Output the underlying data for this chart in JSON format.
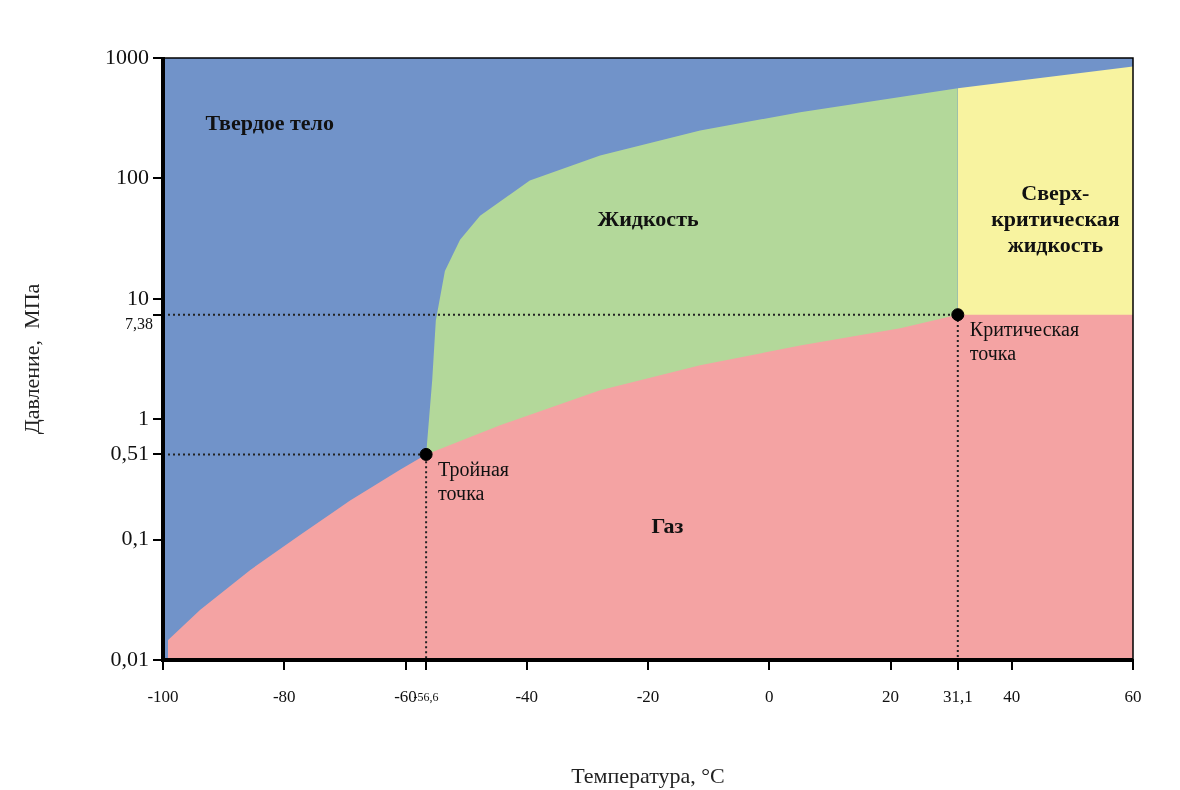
{
  "chart_data": {
    "type": "area",
    "xlabel": "Температура, °C",
    "ylabel": "Давление,  МПа",
    "log": "y",
    "grid": false,
    "legend": false,
    "xlim": [
      -100,
      60
    ],
    "xticks": [
      -100,
      -80,
      -60,
      {
        "value": -56.6,
        "label": "-56,6"
      },
      -40,
      -20,
      0,
      20,
      {
        "value": 31.1,
        "label": "31,1"
      },
      40,
      60
    ],
    "ylim": [
      0.01,
      1000
    ],
    "yticks": [
      {
        "value": 0.01,
        "label": "0,01"
      },
      {
        "value": 0.1,
        "label": "0,1"
      },
      {
        "value": 0.51,
        "label": "0,51"
      },
      1,
      {
        "value": 7.38,
        "label": "7,38"
      },
      10,
      100,
      1000
    ],
    "series": [
      {
        "color": "#7193c9",
        "x": [
          -100,
          60
        ],
        "values": [
          1000,
          1000
        ]
      },
      {
        "color": "#b3d89a",
        "x": [
          -56.6,
          -55.6,
          -55,
          -53.5,
          -51,
          -47.7,
          -39.5,
          -27.9,
          -11.4,
          5.1,
          31.1
        ],
        "values": [
          0.51,
          2.1,
          6.6,
          17,
          31,
          49,
          96,
          155,
          250,
          355,
          560
        ]
      },
      {
        "color": "#f8f3a0",
        "x": [
          31.1,
          60
        ],
        "values": [
          560,
          850
        ]
      },
      {
        "color": "#f4a3a3",
        "x": [
          -99.2,
          -93.9,
          -85.6,
          -77.4,
          -69.2,
          -60.9,
          -56.6,
          -44.4,
          -27.9,
          -11.4,
          5.1,
          21.6,
          31.1,
          60
        ],
        "values": [
          0.0146,
          0.026,
          0.056,
          0.109,
          0.21,
          0.38,
          0.51,
          0.89,
          1.74,
          2.8,
          4.1,
          5.7,
          7.38,
          7.38
        ]
      },
      {
        "type": "line",
        "color": "#222222",
        "line_style": "dotted",
        "x": [
          -100,
          -56.6,
          -56.6
        ],
        "values": [
          0.51,
          0.51,
          0.01
        ]
      },
      {
        "type": "line",
        "color": "#222222",
        "line_style": "dotted",
        "x": [
          -100,
          31.1,
          31.1
        ],
        "values": [
          7.38,
          7.38,
          0.01
        ]
      },
      {
        "type": "scatter",
        "color": "#000000",
        "marker": "circle",
        "x": [
          -56.6,
          31.1
        ],
        "values": [
          0.51,
          7.38
        ]
      }
    ],
    "annotations": [
      "Твердое тело",
      "Жидкость",
      "Сверх-\nкритическая\nжидкость",
      "Газ",
      {
        "text": "Тройная\nточка",
        "x": -56.6,
        "y": 0.51
      },
      {
        "text": "Критическая\nточка",
        "x": 31.1,
        "y": 7.38
      }
    ]
  }
}
